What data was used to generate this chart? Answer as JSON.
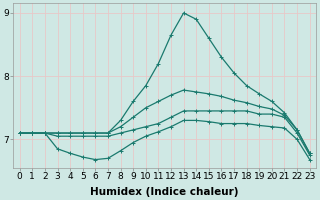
{
  "xlabel": "Humidex (Indice chaleur)",
  "x_values": [
    0,
    1,
    2,
    3,
    4,
    5,
    6,
    7,
    8,
    9,
    10,
    11,
    12,
    13,
    14,
    15,
    16,
    17,
    18,
    19,
    20,
    21,
    22,
    23
  ],
  "lines": [
    {
      "y": [
        7.1,
        7.1,
        7.1,
        7.05,
        7.05,
        7.05,
        7.05,
        7.05,
        7.1,
        7.15,
        7.2,
        7.25,
        7.35,
        7.45,
        7.45,
        7.45,
        7.45,
        7.45,
        7.45,
        7.4,
        7.4,
        7.35,
        7.1,
        6.75
      ]
    },
    {
      "y": [
        7.1,
        7.1,
        7.1,
        6.85,
        6.78,
        6.72,
        6.68,
        6.7,
        6.82,
        6.95,
        7.05,
        7.12,
        7.2,
        7.3,
        7.3,
        7.28,
        7.25,
        7.25,
        7.25,
        7.22,
        7.2,
        7.18,
        7.0,
        6.68
      ]
    },
    {
      "y": [
        7.1,
        7.1,
        7.1,
        7.1,
        7.1,
        7.1,
        7.1,
        7.1,
        7.2,
        7.35,
        7.5,
        7.6,
        7.7,
        7.78,
        7.75,
        7.72,
        7.68,
        7.62,
        7.58,
        7.52,
        7.48,
        7.38,
        7.15,
        6.78
      ]
    },
    {
      "y": [
        7.1,
        7.1,
        7.1,
        7.1,
        7.1,
        7.1,
        7.1,
        7.1,
        7.3,
        7.6,
        7.85,
        8.2,
        8.65,
        9.0,
        8.9,
        8.6,
        8.3,
        8.05,
        7.85,
        7.72,
        7.6,
        7.42,
        7.15,
        6.78
      ]
    }
  ],
  "xlim": [
    -0.5,
    23.5
  ],
  "ylim": [
    6.55,
    9.15
  ],
  "yticks": [
    7,
    8,
    9
  ],
  "xticks": [
    0,
    1,
    2,
    3,
    4,
    5,
    6,
    7,
    8,
    9,
    10,
    11,
    12,
    13,
    14,
    15,
    16,
    17,
    18,
    19,
    20,
    21,
    22,
    23
  ],
  "bg_color": "#cfe8e4",
  "grid_color": "#e8c8c8",
  "line_color": "#1a7a6e",
  "tick_fontsize": 6.5,
  "label_fontsize": 7.5,
  "marker_size": 2.5,
  "line_width": 0.9
}
